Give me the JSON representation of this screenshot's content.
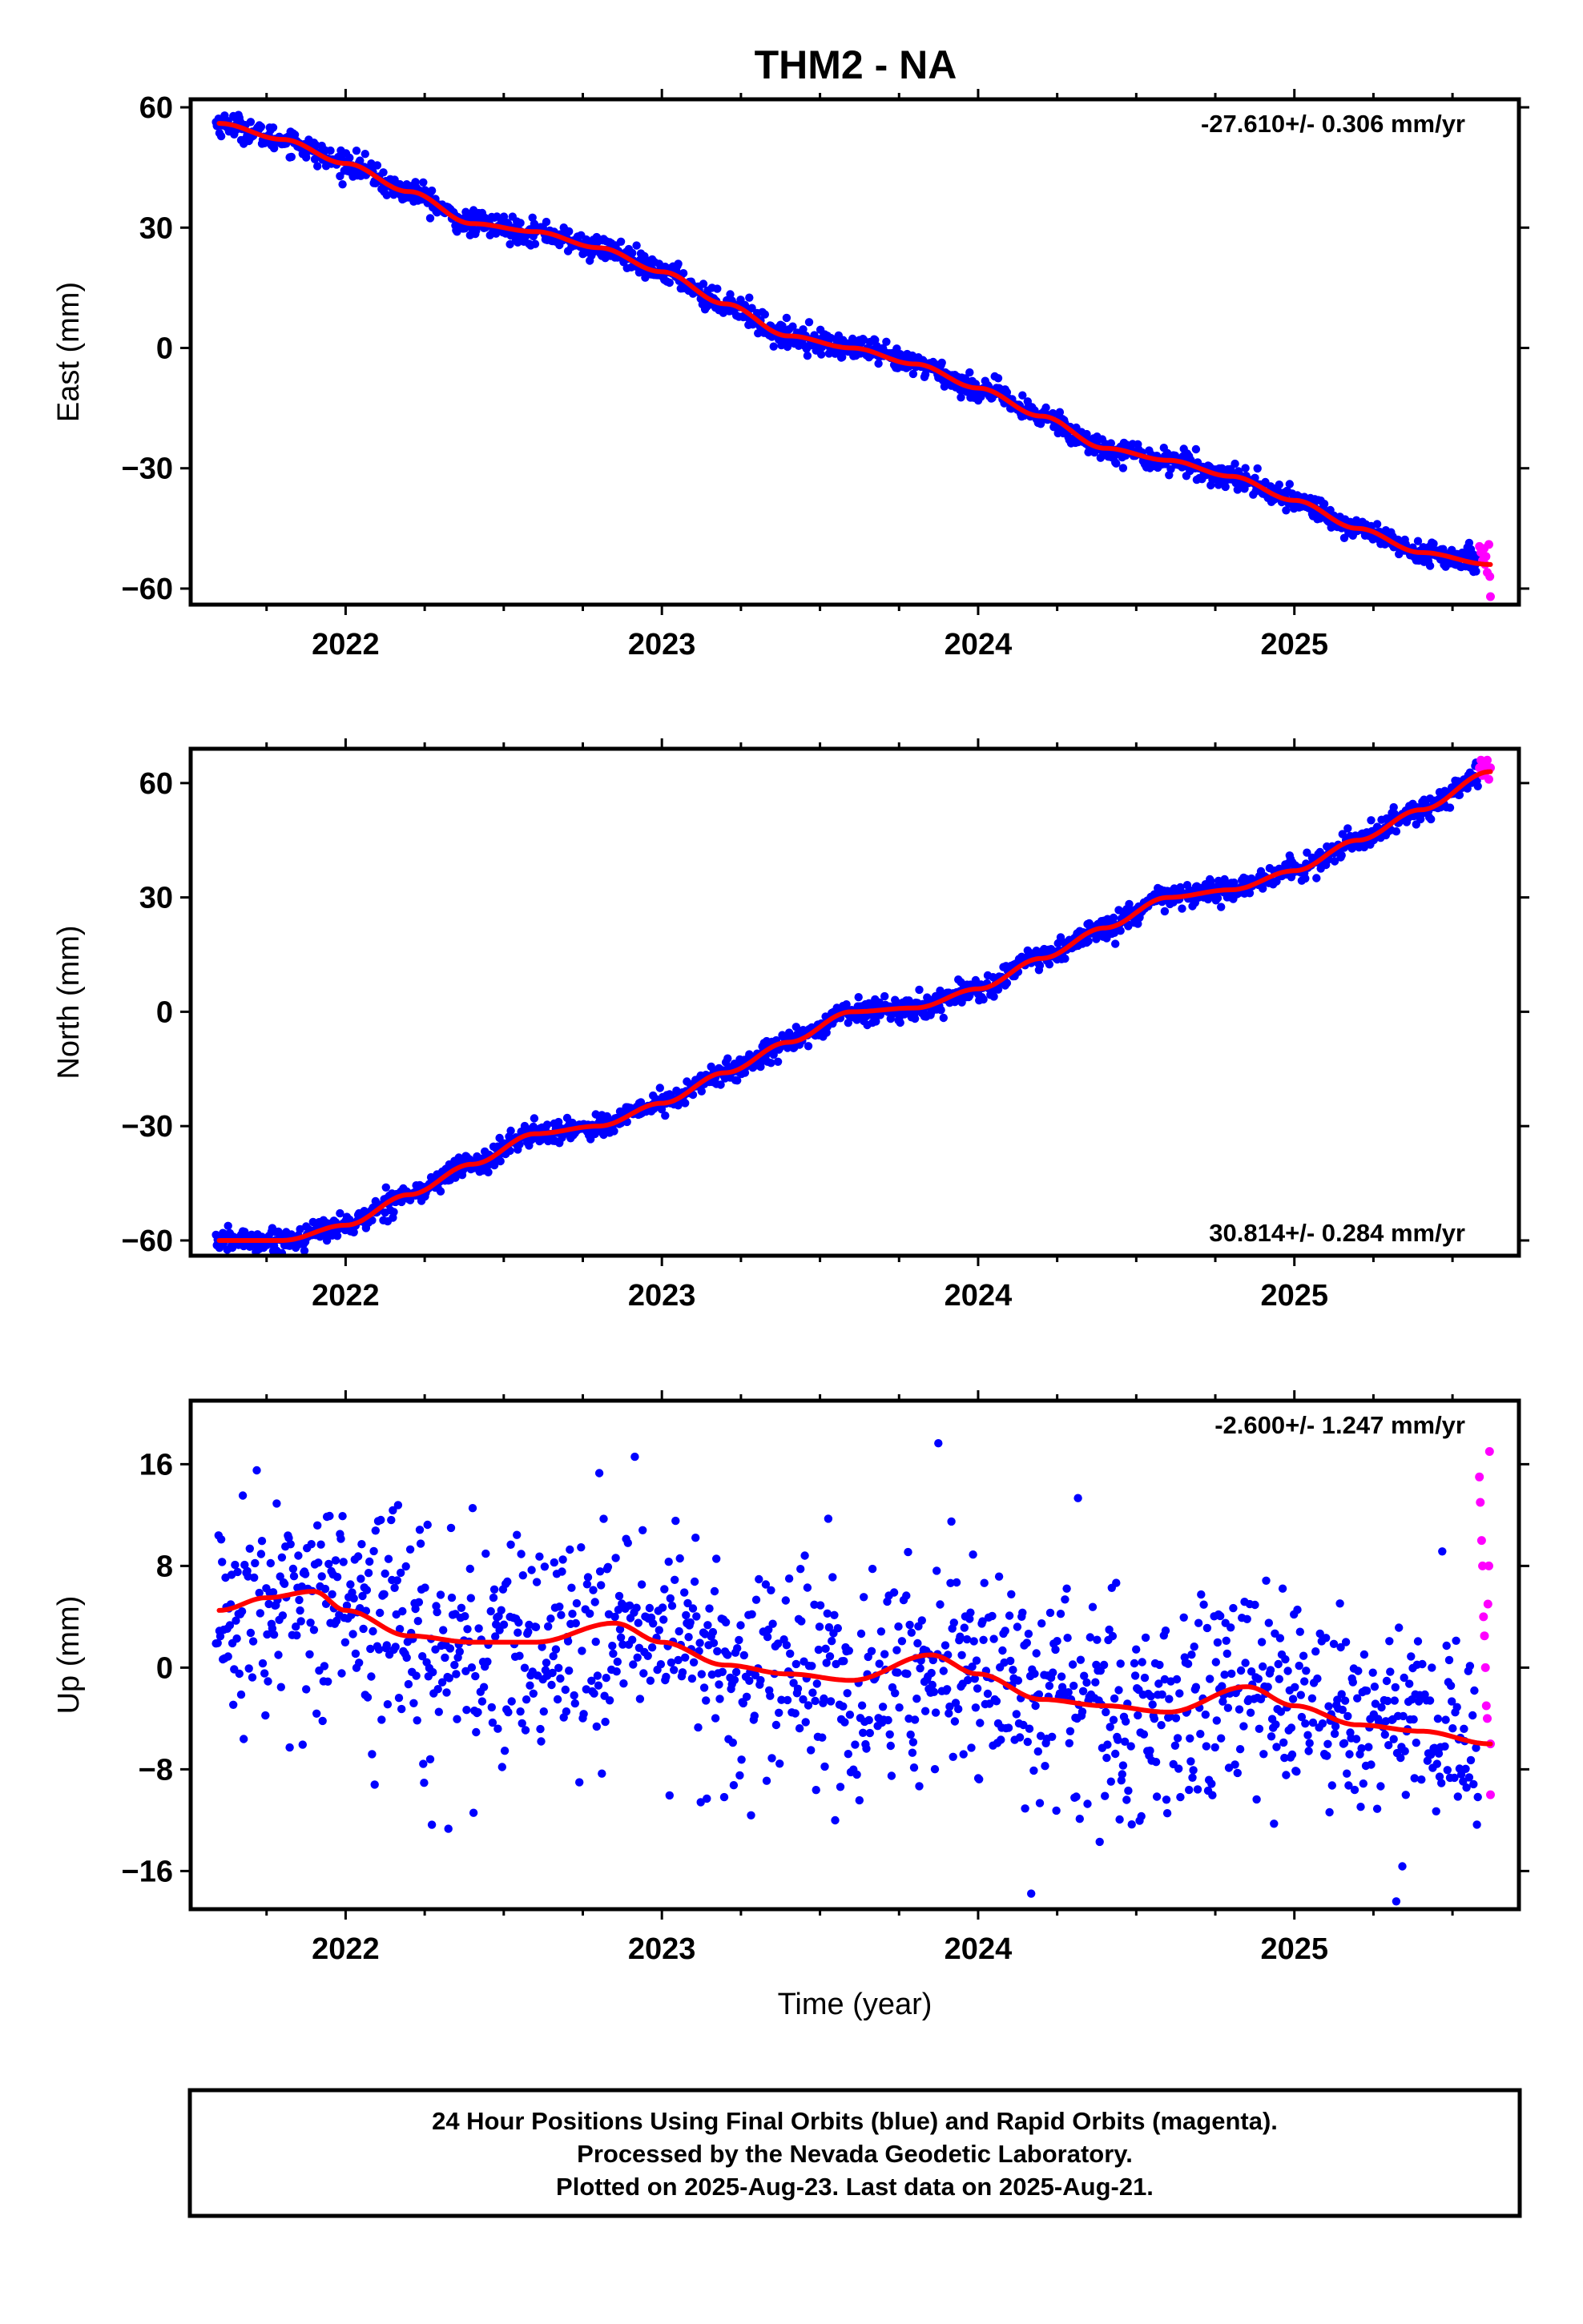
{
  "title": "THM2 - NA",
  "colors": {
    "final": "#0000ff",
    "rapid": "#ff00ff",
    "model": "#ff0000",
    "frame": "#000000"
  },
  "footer": {
    "line1": "24 Hour Positions Using Final Orbits (blue) and Rapid Orbits (magenta).",
    "line2": "Processed by the Nevada Geodetic Laboratory.",
    "line3": "Plotted on 2025-Aug-23. Last data on 2025-Aug-21."
  },
  "chart_data": [
    {
      "type": "scatter",
      "ylabel": "East (mm)",
      "xlabel": "",
      "rate_label": "-27.610+/- 0.306 mm/yr",
      "xlim": [
        2021.51,
        2025.71
      ],
      "ylim": [
        -64,
        62
      ],
      "xticks": [
        2022,
        2023,
        2024,
        2025
      ],
      "yticks": [
        60,
        30,
        0,
        -30,
        -60
      ],
      "ytick_labels": [
        "60",
        "30",
        "0",
        "−30",
        "−60"
      ],
      "trend": {
        "x": [
          2021.6,
          2021.8,
          2022.0,
          2022.2,
          2022.4,
          2022.6,
          2022.8,
          2023.0,
          2023.2,
          2023.4,
          2023.6,
          2023.8,
          2024.0,
          2024.2,
          2024.4,
          2024.6,
          2024.8,
          2025.0,
          2025.2,
          2025.4,
          2025.62
        ],
        "y": [
          56,
          52,
          46,
          39,
          31,
          29,
          25,
          19,
          11,
          3,
          0,
          -4,
          -10,
          -17,
          -25,
          -28,
          -32,
          -38,
          -45,
          -51,
          -54
        ]
      },
      "noise_sd": 1.5,
      "final_end": 2025.58,
      "rapid": {
        "x": [
          2025.585,
          2025.59,
          2025.595,
          2025.6,
          2025.603,
          2025.606,
          2025.61,
          2025.615,
          2025.618,
          2025.62
        ],
        "y": [
          -49.5,
          -51,
          -53,
          -50,
          -54,
          -52,
          -56,
          -49,
          -57,
          -62
        ]
      }
    },
    {
      "type": "scatter",
      "ylabel": "North (mm)",
      "xlabel": "",
      "rate_label": "30.814+/- 0.284 mm/yr",
      "xlim": [
        2021.51,
        2025.71
      ],
      "ylim": [
        -64,
        69
      ],
      "xticks": [
        2022,
        2023,
        2024,
        2025
      ],
      "yticks": [
        60,
        30,
        0,
        -30,
        -60
      ],
      "ytick_labels": [
        "60",
        "30",
        "0",
        "−30",
        "−60"
      ],
      "trend": {
        "x": [
          2021.6,
          2021.8,
          2022.0,
          2022.2,
          2022.4,
          2022.6,
          2022.8,
          2023.0,
          2023.2,
          2023.4,
          2023.6,
          2023.8,
          2024.0,
          2024.2,
          2024.4,
          2024.6,
          2024.8,
          2025.0,
          2025.2,
          2025.4,
          2025.62
        ],
        "y": [
          -60,
          -60,
          -56,
          -48,
          -40,
          -32,
          -30,
          -24,
          -16,
          -8,
          0,
          1,
          6,
          14,
          22,
          30,
          32,
          37,
          45,
          53,
          63
        ]
      },
      "noise_sd": 1.5,
      "final_end": 2025.58,
      "rapid": {
        "x": [
          2025.585,
          2025.59,
          2025.595,
          2025.6,
          2025.605,
          2025.61,
          2025.615,
          2025.62
        ],
        "y": [
          64,
          66,
          62,
          65,
          63,
          66,
          61,
          64
        ]
      }
    },
    {
      "type": "scatter",
      "ylabel": "Up (mm)",
      "xlabel": "Time (year)",
      "rate_label": "-2.600+/- 1.247 mm/yr",
      "xlim": [
        2021.51,
        2025.71
      ],
      "ylim": [
        -19,
        21
      ],
      "xticks": [
        2022,
        2023,
        2024,
        2025
      ],
      "yticks": [
        16,
        8,
        0,
        -8,
        -16
      ],
      "ytick_labels": [
        "16",
        "8",
        "0",
        "−8",
        "−16"
      ],
      "trend": {
        "x": [
          2021.6,
          2021.75,
          2021.9,
          2022.0,
          2022.2,
          2022.4,
          2022.6,
          2022.85,
          2023.0,
          2023.2,
          2023.4,
          2023.6,
          2023.85,
          2024.0,
          2024.2,
          2024.4,
          2024.6,
          2024.85,
          2025.0,
          2025.2,
          2025.4,
          2025.62
        ],
        "y": [
          4.5,
          5.5,
          6,
          4.5,
          2.5,
          2.0,
          2.0,
          3.5,
          2.0,
          0.2,
          -0.5,
          -1.0,
          1.0,
          -0.5,
          -2.5,
          -3.0,
          -3.5,
          -1.5,
          -3.0,
          -4.5,
          -5.0,
          -6.0
        ]
      },
      "noise_sd": 4.2,
      "final_end": 2025.58,
      "rapid": {
        "x": [
          2025.585,
          2025.588,
          2025.592,
          2025.595,
          2025.598,
          2025.601,
          2025.604,
          2025.607,
          2025.61,
          2025.612,
          2025.615,
          2025.617,
          2025.62,
          2025.62
        ],
        "y": [
          15,
          13,
          10,
          8,
          4,
          2.5,
          0,
          -3,
          -4,
          5,
          8,
          17,
          -6,
          -10
        ]
      }
    }
  ]
}
